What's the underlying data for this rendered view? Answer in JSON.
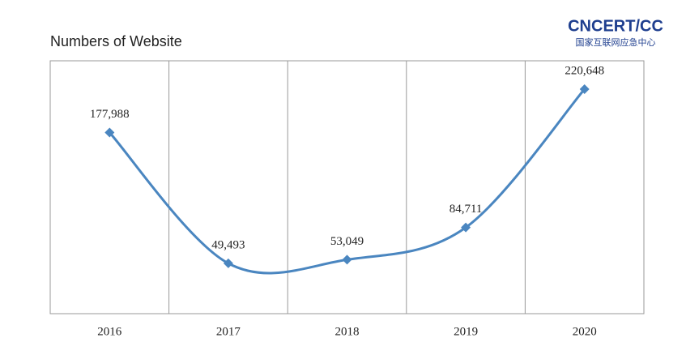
{
  "logo": {
    "name": "CNCERT/CC",
    "subtitle": "国家互联网应急中心"
  },
  "chart_data": {
    "type": "line",
    "title": "Numbers of Website",
    "categories": [
      "2016",
      "2017",
      "2018",
      "2019",
      "2020"
    ],
    "values": [
      177988,
      49493,
      53049,
      84711,
      220648
    ],
    "value_labels": [
      "177,988",
      "49,493",
      "53,049",
      "84,711",
      "220,648"
    ],
    "color": "#4a86c0",
    "smooth": true,
    "marker": "diamond"
  }
}
